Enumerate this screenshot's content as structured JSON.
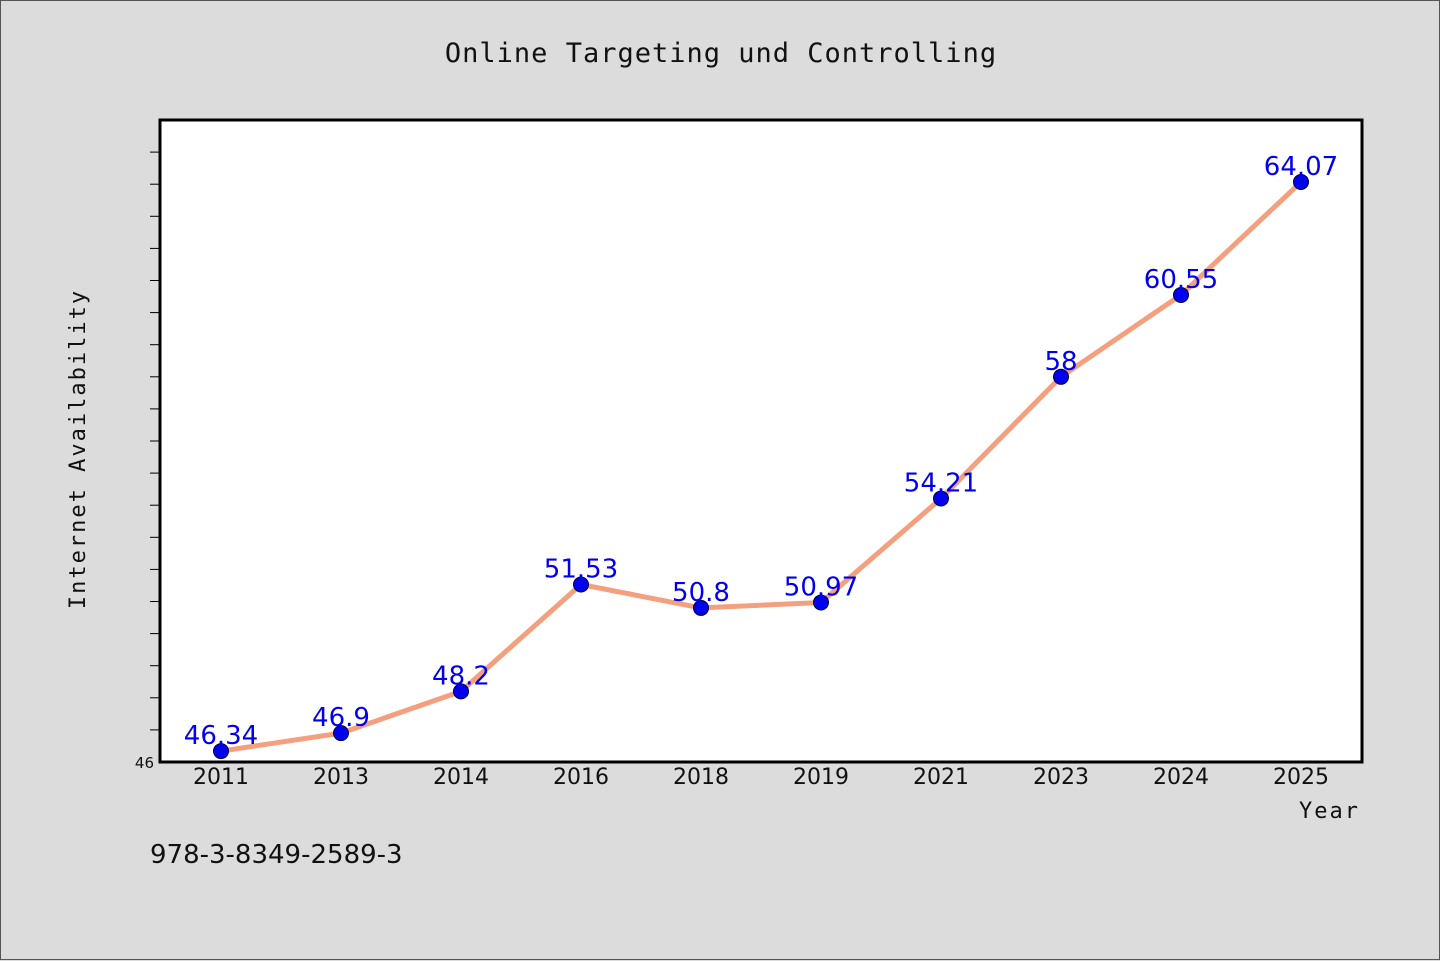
{
  "chart_data": {
    "type": "line",
    "title": "Online Targeting und Controlling",
    "xlabel": "Year",
    "ylabel": "Internet Availability",
    "categories": [
      "2011",
      "2013",
      "2014",
      "2016",
      "2018",
      "2019",
      "2021",
      "2023",
      "2024",
      "2025"
    ],
    "series": [
      {
        "values": [
          46.34,
          46.9,
          48.2,
          51.53,
          50.8,
          50.97,
          54.21,
          58,
          60.55,
          64.07
        ],
        "labels": [
          "46.34",
          "46.9",
          "48.2",
          "51.53",
          "50.8",
          "50.97",
          "54.21",
          "58",
          "60.55",
          "64.07"
        ],
        "line_color": "#f4a07e",
        "marker_color": "#0000ee"
      }
    ],
    "ylim": [
      46,
      66
    ],
    "y_tick_label": "46",
    "grid": false
  },
  "footer": {
    "isbn": "978-3-8349-2589-3"
  }
}
